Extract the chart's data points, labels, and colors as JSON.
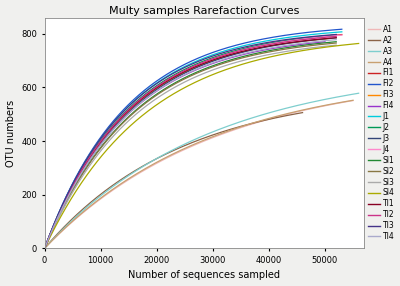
{
  "title": "Multy samples Rarefaction Curves",
  "xlabel": "Number of sequences sampled",
  "ylabel": "OTU numbers",
  "xlim": [
    0,
    57000
  ],
  "ylim": [
    0,
    860
  ],
  "xticks": [
    0,
    10000,
    20000,
    30000,
    40000,
    50000
  ],
  "yticks": [
    0,
    200,
    400,
    600,
    800
  ],
  "series": [
    {
      "name": "A1",
      "color": "#f0b8b8",
      "max_x": 55000,
      "max_y": 660,
      "k": 1.8
    },
    {
      "name": "A2",
      "color": "#8B6347",
      "max_x": 46000,
      "max_y": 595,
      "k": 1.9
    },
    {
      "name": "A3",
      "color": "#7ecece",
      "max_x": 56000,
      "max_y": 680,
      "k": 1.9
    },
    {
      "name": "A4",
      "color": "#c8a070",
      "max_x": 55000,
      "max_y": 655,
      "k": 1.85
    },
    {
      "name": "FI1",
      "color": "#cc2222",
      "max_x": 53000,
      "max_y": 822,
      "k": 3.5
    },
    {
      "name": "FI2",
      "color": "#2255cc",
      "max_x": 53000,
      "max_y": 840,
      "k": 3.6
    },
    {
      "name": "FI3",
      "color": "#ff8800",
      "max_x": 51000,
      "max_y": 810,
      "k": 3.4
    },
    {
      "name": "FI4",
      "color": "#9933cc",
      "max_x": 50000,
      "max_y": 800,
      "k": 3.3
    },
    {
      "name": "J1",
      "color": "#00ccdd",
      "max_x": 53000,
      "max_y": 830,
      "k": 3.6
    },
    {
      "name": "J2",
      "color": "#009955",
      "max_x": 52000,
      "max_y": 820,
      "k": 3.5
    },
    {
      "name": "J3",
      "color": "#334477",
      "max_x": 52000,
      "max_y": 812,
      "k": 3.4
    },
    {
      "name": "J4",
      "color": "#ff88cc",
      "max_x": 53000,
      "max_y": 820,
      "k": 3.5
    },
    {
      "name": "SI1",
      "color": "#228833",
      "max_x": 52000,
      "max_y": 800,
      "k": 3.3
    },
    {
      "name": "SI2",
      "color": "#887744",
      "max_x": 52000,
      "max_y": 795,
      "k": 3.3
    },
    {
      "name": "SI3",
      "color": "#aaaaaa",
      "max_x": 52000,
      "max_y": 790,
      "k": 3.2
    },
    {
      "name": "SI4",
      "color": "#aaaa00",
      "max_x": 56000,
      "max_y": 800,
      "k": 3.1
    },
    {
      "name": "TI1",
      "color": "#880022",
      "max_x": 52000,
      "max_y": 810,
      "k": 3.5
    },
    {
      "name": "TI2",
      "color": "#cc3388",
      "max_x": 52000,
      "max_y": 815,
      "k": 3.5
    },
    {
      "name": "TI3",
      "color": "#443388",
      "max_x": 52000,
      "max_y": 820,
      "k": 3.6
    },
    {
      "name": "TI4",
      "color": "#aaaacc",
      "max_x": 52000,
      "max_y": 805,
      "k": 3.4
    }
  ],
  "bg_color": "#ffffff",
  "fig_bg": "#f0f0ee",
  "title_fontsize": 8,
  "axis_fontsize": 7,
  "tick_fontsize": 6,
  "legend_fontsize": 5.5,
  "linewidth": 0.9
}
